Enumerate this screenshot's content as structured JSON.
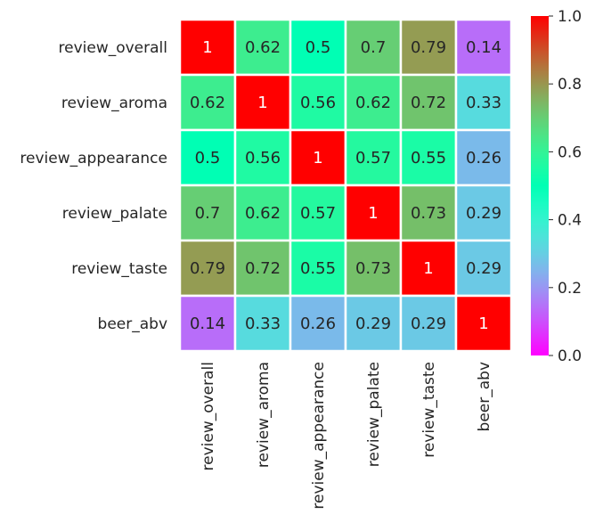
{
  "chart_data": {
    "type": "heatmap",
    "title": "",
    "xlabel": "",
    "ylabel": "",
    "row_labels": [
      "review_overall",
      "review_aroma",
      "review_appearance",
      "review_palate",
      "review_taste",
      "beer_abv"
    ],
    "col_labels": [
      "review_overall",
      "review_aroma",
      "review_appearance",
      "review_palate",
      "review_taste",
      "beer_abv"
    ],
    "values": [
      [
        1,
        0.62,
        0.5,
        0.7,
        0.79,
        0.14
      ],
      [
        0.62,
        1,
        0.56,
        0.62,
        0.72,
        0.33
      ],
      [
        0.5,
        0.56,
        1,
        0.57,
        0.55,
        0.26
      ],
      [
        0.7,
        0.62,
        0.57,
        1,
        0.73,
        0.29
      ],
      [
        0.79,
        0.72,
        0.55,
        0.73,
        1,
        0.29
      ],
      [
        0.14,
        0.33,
        0.26,
        0.29,
        0.29,
        1
      ]
    ],
    "colormap": "rainbow",
    "vmin": 0,
    "vmax": 1,
    "colorbar": {
      "ticks": [
        0.0,
        0.2,
        0.4,
        0.6,
        0.8,
        1.0
      ],
      "tick_labels": [
        "0.0",
        "0.2",
        "0.4",
        "0.6",
        "0.8",
        "1.0"
      ],
      "placement": "right"
    },
    "annotations": true,
    "grid_line_color": "#ffffff"
  }
}
